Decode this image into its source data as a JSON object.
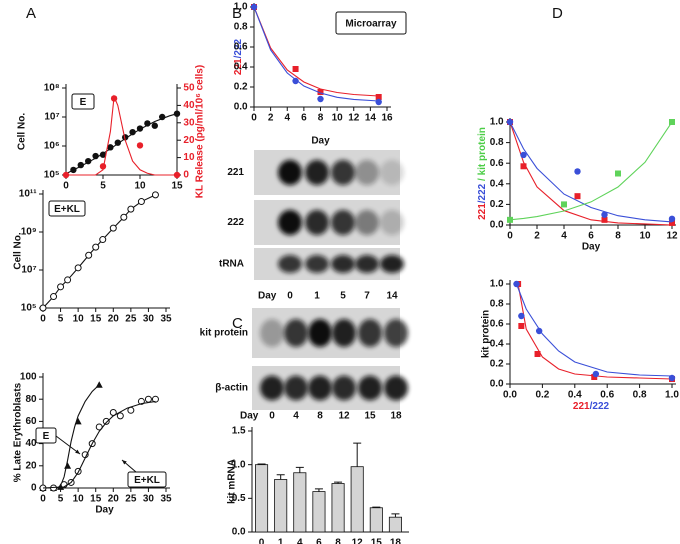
{
  "panel_labels": [
    "A",
    "B",
    "C",
    "D"
  ],
  "chart_data": [
    {
      "type": "scatter",
      "annotations": [
        "E"
      ],
      "ylabel": "Cell No.",
      "y2label": "KL Release (pg/ml/10⁶ cells)",
      "y2color": "#e8202a",
      "xlim": [
        0,
        15
      ],
      "xticks": [
        0,
        5,
        10,
        15
      ],
      "ylog": true,
      "ylim": [
        100000,
        100000000
      ],
      "yticks": [
        {
          "value": 100000,
          "label": "10⁵"
        },
        {
          "value": 1000000,
          "label": "10⁶"
        },
        {
          "value": 10000000,
          "label": "10⁷"
        },
        {
          "value": 100000000,
          "label": "10⁸"
        }
      ],
      "y2lim": [
        0,
        50
      ],
      "y2ticks": [
        0,
        10,
        20,
        30,
        40,
        50
      ],
      "series": [
        {
          "color": "#111111",
          "marker": "circle",
          "x": [
            1,
            2,
            3,
            4,
            5,
            6,
            7,
            8,
            9,
            10,
            11,
            12,
            13,
            15
          ],
          "values": [
            150000,
            220000,
            300000,
            450000,
            500000,
            900000,
            1300000,
            2000000,
            3000000,
            4000000,
            6000000,
            5000000,
            10000000,
            13000000
          ]
        },
        {
          "color": "#111111",
          "marker": "none",
          "x": [
            0,
            2,
            4,
            6,
            8,
            10,
            12,
            14,
            15
          ],
          "values": [
            110000,
            200000,
            380000,
            800000,
            1800000,
            3800000,
            7000000,
            11000000,
            13000000
          ]
        },
        {
          "color": "#e8202a",
          "marker": "circle",
          "axis": "y2",
          "x": [
            0,
            5,
            6.5,
            10,
            15
          ],
          "values": [
            0,
            5,
            44,
            17,
            0
          ]
        },
        {
          "color": "#e8202a",
          "marker": "none",
          "axis": "y2",
          "x": [
            0,
            4,
            5,
            6,
            6.5,
            7,
            8,
            9,
            10,
            11,
            12,
            15
          ],
          "values": [
            0,
            0,
            3,
            25,
            45,
            40,
            20,
            8,
            3,
            1,
            0,
            0
          ]
        }
      ]
    },
    {
      "type": "line",
      "annotations": [
        "E+KL"
      ],
      "ylabel": "Cell No.",
      "xlim": [
        0,
        35
      ],
      "xticks": [
        0,
        5,
        10,
        15,
        20,
        25,
        30,
        35
      ],
      "ylog": true,
      "ylim": [
        100000,
        100000000000
      ],
      "yticks": [
        {
          "value": 100000,
          "label": "10⁵"
        },
        {
          "value": 10000000,
          "label": "10⁷"
        },
        {
          "value": 1000000000,
          "label": "10⁹"
        },
        {
          "value": 100000000000,
          "label": "10¹¹"
        }
      ],
      "series": [
        {
          "color": "#111111",
          "marker": "open-circle",
          "line": true,
          "x": [
            0,
            3,
            5,
            7,
            10,
            13,
            15,
            17,
            20,
            23,
            25,
            28,
            32
          ],
          "values": [
            100000,
            400000,
            1300000,
            3000000,
            13000000,
            60000000,
            160000000,
            400000000,
            1600000000,
            6000000000,
            16000000000,
            40000000000,
            90000000000
          ]
        }
      ]
    },
    {
      "type": "scatter",
      "annotations": [
        "E",
        "E+KL"
      ],
      "ylabel": "% Late Erythroblasts",
      "xlabel": "Day",
      "xlim": [
        0,
        35
      ],
      "xticks": [
        0,
        5,
        10,
        15,
        20,
        25,
        30,
        35
      ],
      "ylim": [
        0,
        100
      ],
      "yticks": [
        0,
        20,
        40,
        60,
        80,
        100
      ],
      "series": [
        {
          "color": "#111111",
          "marker": "triangle",
          "x": [
            0,
            3,
            5,
            7,
            10,
            16
          ],
          "values": [
            0,
            0,
            1,
            20,
            60,
            93
          ]
        },
        {
          "color": "#111111",
          "marker": "none",
          "x": [
            0,
            4,
            5,
            6,
            7,
            8,
            9,
            10,
            12,
            14,
            16
          ],
          "values": [
            0,
            0,
            2,
            10,
            25,
            42,
            55,
            65,
            78,
            87,
            93
          ]
        },
        {
          "color": "#111111",
          "marker": "open-circle",
          "x": [
            0,
            3,
            6,
            8,
            10,
            12,
            14,
            16,
            18,
            20,
            22,
            25,
            28,
            30,
            32
          ],
          "values": [
            0,
            0,
            3,
            5,
            15,
            30,
            40,
            55,
            60,
            68,
            65,
            70,
            78,
            80,
            80
          ]
        },
        {
          "color": "#111111",
          "marker": "none",
          "x": [
            0,
            6,
            8,
            10,
            12,
            14,
            16,
            18,
            20,
            24,
            28,
            32
          ],
          "values": [
            0,
            1,
            5,
            14,
            27,
            40,
            51,
            59,
            65,
            72,
            76,
            78
          ]
        }
      ]
    },
    {
      "type": "scatter",
      "annotations": [
        "Microarray"
      ],
      "xlabel": "Day",
      "ylabel_parts": [
        {
          "text": "221",
          "color": "#e8202a"
        },
        {
          "text": "/",
          "color": "#3a4fd8"
        },
        {
          "text": "222",
          "color": "#3a4fd8"
        }
      ],
      "xlim": [
        0,
        16
      ],
      "xticks": [
        0,
        2,
        4,
        6,
        8,
        10,
        12,
        14,
        16
      ],
      "ylim": [
        0,
        1
      ],
      "yticks": [
        {
          "value": 0,
          "label": "0.0"
        },
        0.2,
        0.4,
        0.6,
        0.8,
        {
          "value": 1,
          "label": "1.0"
        }
      ],
      "series": [
        {
          "color": "#e8202a",
          "marker": "square",
          "x": [
            0,
            5,
            8,
            15
          ],
          "values": [
            1,
            0.38,
            0.15,
            0.1
          ]
        },
        {
          "color": "#e8202a",
          "marker": "none",
          "x": [
            0,
            2,
            4,
            6,
            8,
            10,
            12,
            15
          ],
          "values": [
            1,
            0.59,
            0.37,
            0.25,
            0.18,
            0.145,
            0.125,
            0.11
          ]
        },
        {
          "color": "#3a4fd8",
          "marker": "circle",
          "x": [
            0,
            5,
            8,
            15
          ],
          "values": [
            1,
            0.26,
            0.08,
            0.05
          ]
        },
        {
          "color": "#3a4fd8",
          "marker": "none",
          "x": [
            0,
            2,
            4,
            6,
            8,
            10,
            12,
            15
          ],
          "values": [
            1,
            0.57,
            0.34,
            0.21,
            0.14,
            0.097,
            0.076,
            0.06
          ]
        }
      ]
    },
    {
      "type": "bar",
      "ylabel": "kit mRNA",
      "color": "#d4d4d4",
      "categories": [
        0,
        1,
        4,
        6,
        8,
        12,
        15,
        18
      ],
      "values": [
        1.0,
        0.78,
        0.88,
        0.6,
        0.72,
        0.97,
        0.36,
        0.22
      ],
      "errors": [
        0.01,
        0.07,
        0.08,
        0.04,
        0.02,
        0.35,
        0.01,
        0.05
      ],
      "ylim": [
        0,
        1.5
      ],
      "yticks": [
        {
          "value": 0,
          "label": "0.0"
        },
        0.5,
        {
          "value": 1,
          "label": "1.0"
        },
        1.5
      ]
    },
    {
      "type": "scatter",
      "xlabel": "Day",
      "ylabel_parts": [
        {
          "text": "221",
          "color": "#e8202a"
        },
        {
          "text": "/",
          "color": "#3a4fd8"
        },
        {
          "text": "222",
          "color": "#3a4fd8"
        },
        {
          "text": " / kit protein",
          "color": "#4ccd47"
        }
      ],
      "xlim": [
        0,
        12
      ],
      "xticks": [
        0,
        2,
        4,
        6,
        8,
        10,
        12
      ],
      "ylim": [
        0,
        1
      ],
      "yticks": [
        {
          "value": 0,
          "label": "0.0"
        },
        0.2,
        0.4,
        0.6,
        0.8,
        {
          "value": 1,
          "label": "1.0"
        }
      ],
      "series": [
        {
          "color": "#e8202a",
          "marker": "square",
          "x": [
            0,
            1,
            5,
            7,
            12
          ],
          "values": [
            1,
            0.57,
            0.28,
            0.05,
            0.02
          ]
        },
        {
          "color": "#e8202a",
          "marker": "none",
          "x": [
            0,
            1,
            2,
            4,
            6,
            8,
            10,
            12
          ],
          "values": [
            1,
            0.61,
            0.37,
            0.14,
            0.05,
            0.02,
            0.01,
            0
          ]
        },
        {
          "color": "#3a4fd8",
          "marker": "circle",
          "x": [
            0,
            1,
            5,
            7,
            12
          ],
          "values": [
            1,
            0.68,
            0.52,
            0.1,
            0.06
          ]
        },
        {
          "color": "#3a4fd8",
          "marker": "none",
          "x": [
            0,
            1,
            2,
            4,
            6,
            8,
            10,
            12
          ],
          "values": [
            1,
            0.74,
            0.55,
            0.3,
            0.17,
            0.09,
            0.05,
            0.03
          ]
        },
        {
          "color": "#5fd35a",
          "marker": "square",
          "x": [
            0,
            4,
            8,
            12
          ],
          "values": [
            0.05,
            0.2,
            0.5,
            1
          ]
        },
        {
          "color": "#5fd35a",
          "marker": "none",
          "x": [
            0,
            1,
            2,
            4,
            6,
            8,
            10,
            12
          ],
          "values": [
            0.05,
            0.064,
            0.082,
            0.136,
            0.224,
            0.369,
            0.609,
            1
          ]
        }
      ]
    },
    {
      "type": "scatter",
      "ylabel": "kit protein",
      "xlabel_parts": [
        {
          "text": "221",
          "color": "#e8202a"
        },
        {
          "text": "/",
          "color": "#3a4fd8"
        },
        {
          "text": "222",
          "color": "#3a4fd8"
        }
      ],
      "xlim": [
        0,
        1
      ],
      "xticks": [
        {
          "value": 0,
          "label": "0.0"
        },
        0.2,
        0.4,
        0.6,
        0.8,
        {
          "value": 1,
          "label": "1.0"
        }
      ],
      "ylim": [
        0,
        1
      ],
      "yticks": [
        {
          "value": 0,
          "label": "0.0"
        },
        0.2,
        0.4,
        0.6,
        0.8,
        {
          "value": 1,
          "label": "1.0"
        }
      ],
      "series": [
        {
          "color": "#e8202a",
          "marker": "square",
          "x": [
            0.05,
            0.07,
            0.17,
            0.52,
            1
          ],
          "values": [
            1,
            0.58,
            0.3,
            0.07,
            0.05
          ]
        },
        {
          "color": "#e8202a",
          "marker": "none",
          "x": [
            0.05,
            0.1,
            0.2,
            0.3,
            0.4,
            0.6,
            0.8,
            1
          ],
          "values": [
            1,
            0.55,
            0.27,
            0.15,
            0.1,
            0.07,
            0.06,
            0.05
          ]
        },
        {
          "color": "#3a4fd8",
          "marker": "circle",
          "x": [
            0.04,
            0.07,
            0.18,
            0.53,
            1
          ],
          "values": [
            1,
            0.68,
            0.53,
            0.1,
            0.06
          ]
        },
        {
          "color": "#3a4fd8",
          "marker": "none",
          "x": [
            0.04,
            0.1,
            0.2,
            0.3,
            0.4,
            0.6,
            0.8,
            1
          ],
          "values": [
            1,
            0.75,
            0.5,
            0.33,
            0.22,
            0.12,
            0.09,
            0.08
          ]
        }
      ]
    }
  ],
  "blots": [
    {
      "rows": [
        "221",
        "222",
        "tRNA"
      ],
      "lanes_label": "Day",
      "lanes": [
        0,
        1,
        5,
        7,
        14
      ]
    },
    {
      "rows": [
        "kit protein",
        "β-actin"
      ],
      "lanes_label": "Day",
      "lanes": [
        0,
        4,
        8,
        12,
        15,
        18
      ]
    }
  ]
}
